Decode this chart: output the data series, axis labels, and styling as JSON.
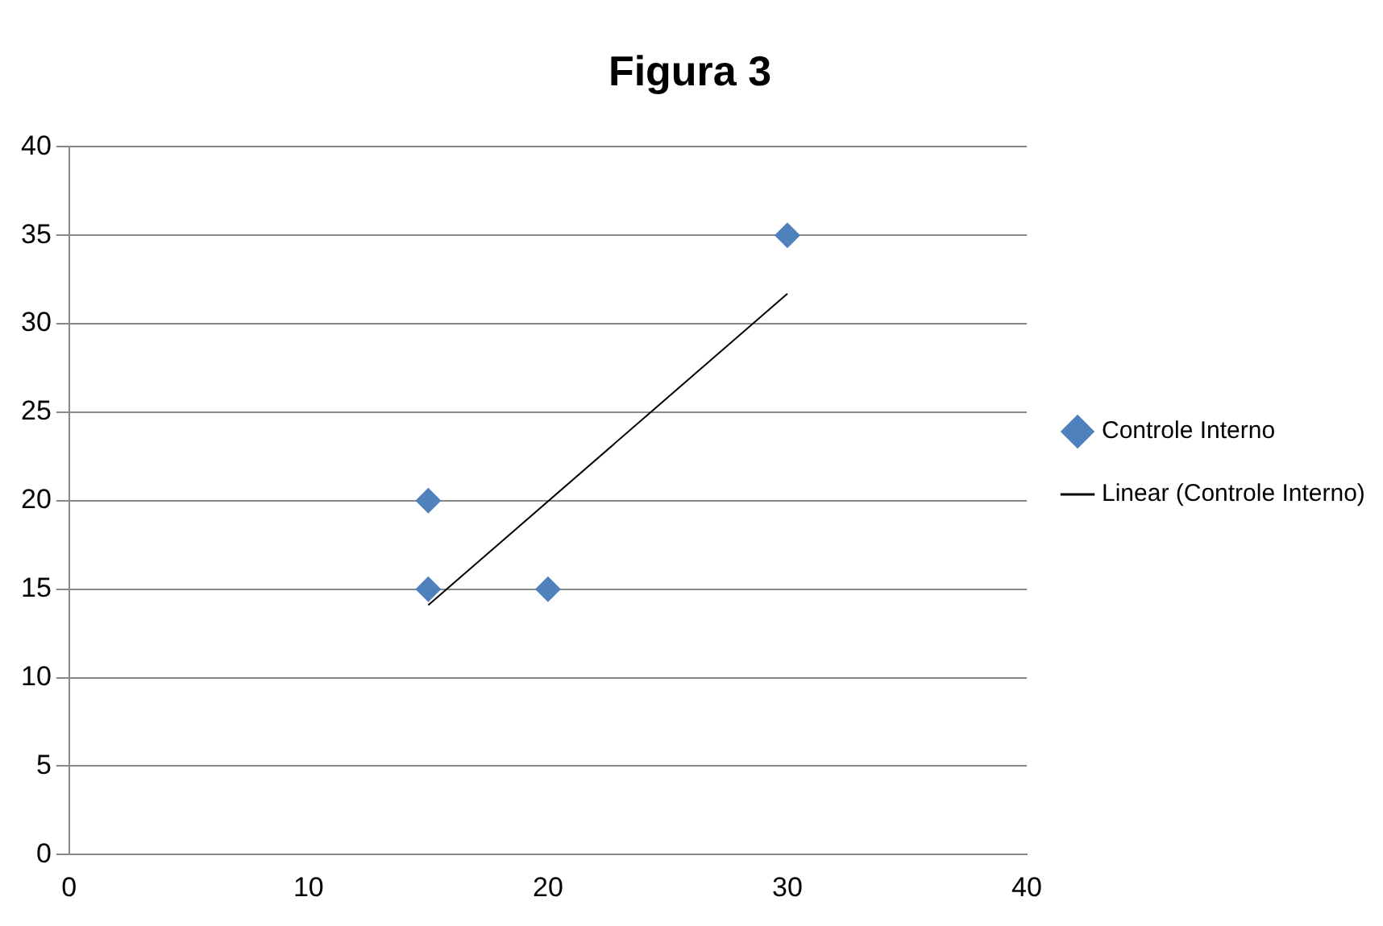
{
  "chart_data": {
    "type": "scatter",
    "title": "Figura 3",
    "series": [
      {
        "name": "Controle Interno",
        "type": "scatter",
        "color": "#4f81bd",
        "x": [
          15,
          15,
          20,
          30
        ],
        "values": [
          20,
          15,
          15,
          35
        ],
        "marker": "diamond"
      },
      {
        "name": "Linear (Controle Interno)",
        "type": "line",
        "color": "#000000",
        "x": [
          15,
          30
        ],
        "values": [
          14.1,
          31.7
        ],
        "marker": "none",
        "line_style": "solid"
      }
    ],
    "xlim": [
      0,
      40
    ],
    "xticks": [
      0,
      10,
      20,
      30,
      40
    ],
    "ylim": [
      0,
      40
    ],
    "yticks": [
      0,
      5,
      10,
      15,
      20,
      25,
      30,
      35,
      40
    ],
    "grid": "y",
    "legend": "right"
  }
}
